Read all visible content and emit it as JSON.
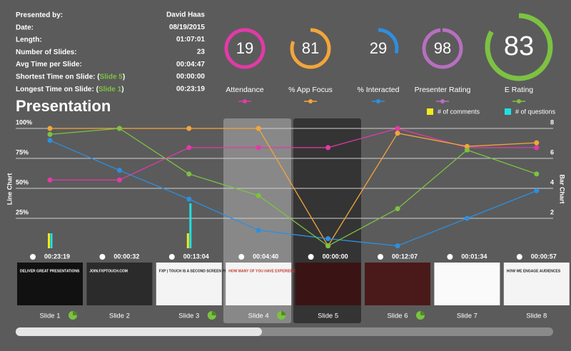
{
  "info": {
    "rows": [
      {
        "label": "Presented by:",
        "value": "David Haas"
      },
      {
        "label": "Date:",
        "value": "08/19/2015"
      },
      {
        "label": "Length:",
        "value": "01:07:01"
      },
      {
        "label": "Number of Slides:",
        "value": 23
      },
      {
        "label": "Avg Time per Slide:",
        "value": "00:04:47"
      },
      {
        "label": "Shortest Time on Slide: (",
        "link": "Slide 5",
        "after": ")",
        "value": "00:00:00"
      },
      {
        "label": "Longest Time on Slide: (",
        "link": "Slide 1",
        "after": ")",
        "value": "00:23:19"
      }
    ]
  },
  "gauges": [
    {
      "label": "Attendance",
      "value": 19,
      "range": [
        0,
        19
      ],
      "color": "#e23aa7"
    },
    {
      "label": "% App Focus",
      "value": 81,
      "range": [
        0,
        100
      ],
      "color": "#f2a63a"
    },
    {
      "label": "% Interacted",
      "value": 29,
      "range": [
        0,
        100
      ],
      "color": "#2d8fe0"
    },
    {
      "label": "Presenter Rating",
      "value": 98,
      "range": [
        0,
        100
      ],
      "color": "#b76fc0"
    },
    {
      "label": "E Rating",
      "value": 83,
      "range": [
        0,
        100
      ],
      "color": "#7cc242"
    }
  ],
  "chart_data": {
    "type": "line_bar",
    "title": "Presentation",
    "y_label": "Line Chart",
    "y2_label": "Bar Chart",
    "categories": [
      "Slide 1",
      "Slide 2",
      "Slide 3",
      "Slide 4",
      "Slide 5",
      "Slide 6",
      "Slide 7",
      "Slide 8"
    ],
    "times": [
      "00:23:19",
      "00:00:32",
      "00:13:04",
      "00:04:40",
      "00:00:00",
      "00:12:07",
      "00:01:34",
      "00:00:57"
    ],
    "thumb_text": [
      "DELIVER GREAT PRESENTATIONS",
      "JOIN.FXPTOUCH.COM",
      "FXP | TOUCH IS A SECOND SCREEN PLATFORM",
      "HOW MANY OF YOU HAVE EXPERIENCED A BAD PRESENTATION?",
      null,
      null,
      null,
      "HOW WE ENGAGE AUDIENCES"
    ],
    "ylim": [
      0,
      100
    ],
    "yticks": [
      {
        "value": 25,
        "label": "25%"
      },
      {
        "value": 50,
        "label": "50%"
      },
      {
        "value": 75,
        "label": "75%"
      },
      {
        "value": 100,
        "label": "100%"
      }
    ],
    "y2lim": [
      0,
      8
    ],
    "y2ticks": [
      2,
      4,
      6,
      8
    ],
    "grid": true,
    "series": [
      {
        "color": "#e23aa7",
        "values": [
          57,
          57,
          84,
          84,
          84,
          100,
          84,
          84
        ]
      },
      {
        "color": "#f2a63a",
        "values": [
          100,
          100,
          100,
          100,
          2,
          96,
          85,
          88
        ]
      },
      {
        "color": "#2d8fe0",
        "values": [
          90,
          65,
          41,
          15,
          8,
          2,
          25,
          48
        ]
      },
      {
        "color": "#7cc242",
        "values": [
          95,
          100,
          62,
          44,
          2,
          33,
          82,
          62
        ]
      }
    ],
    "bars": [
      {
        "name": "# of comments",
        "color": "#f2ea1c",
        "axis": "y2",
        "values": [
          1,
          0,
          1,
          0,
          0,
          0,
          0,
          0
        ]
      },
      {
        "name": "# of questions",
        "color": "#20e0e0",
        "axis": "y2",
        "values": [
          1,
          0,
          3,
          0,
          0,
          0,
          0,
          0
        ]
      }
    ]
  }
}
